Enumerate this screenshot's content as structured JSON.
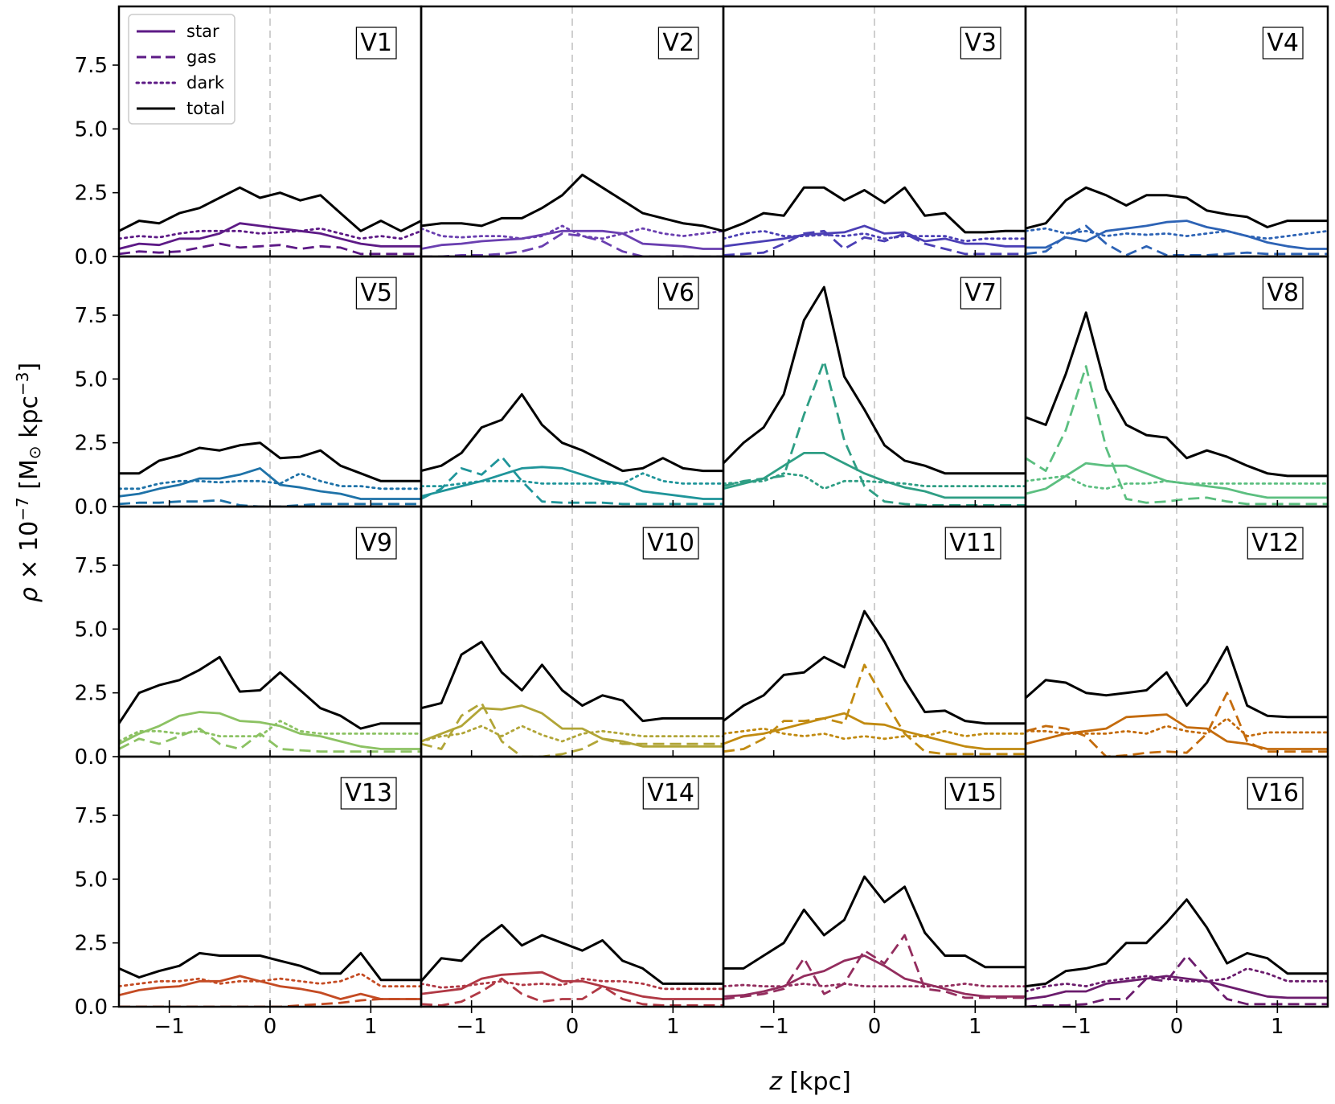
{
  "chart_data": {
    "type": "line",
    "xlabel": "z [kpc]",
    "ylabel_prefix": "ρ × 10",
    "ylabel_exp": "−7",
    "ylabel_units": "[M",
    "ylabel_sun": "⊙",
    "ylabel_units2": " kpc",
    "ylabel_units_exp": "−3",
    "ylabel_close": "]",
    "xlim": [
      -1.5,
      1.5
    ],
    "ylim": [
      0,
      9.8
    ],
    "xticks": [
      -1,
      0,
      1
    ],
    "xtick_labels": [
      "−1",
      "0",
      "1"
    ],
    "yticks": [
      0,
      2.5,
      5,
      7.5
    ],
    "ytick_labels": [
      "0.0",
      "2.5",
      "5.0",
      "7.5"
    ],
    "reference_line_x": 0,
    "legend": {
      "placement": "top-left of panel V1",
      "entries": [
        {
          "label": "star",
          "style": "solid"
        },
        {
          "label": "gas",
          "style": "dashed"
        },
        {
          "label": "dark",
          "style": "dotted"
        },
        {
          "label": "total",
          "style": "solid-black"
        }
      ]
    },
    "x": [
      -1.5,
      -1.3,
      -1.1,
      -0.9,
      -0.7,
      -0.5,
      -0.3,
      -0.1,
      0.1,
      0.3,
      0.5,
      0.7,
      0.9,
      1.1,
      1.3,
      1.5
    ],
    "panels": [
      {
        "name": "V1",
        "color": "#5d1a86",
        "total": [
          1.0,
          1.4,
          1.3,
          1.7,
          1.9,
          2.3,
          2.7,
          2.3,
          2.5,
          2.2,
          2.4,
          1.7,
          1.0,
          1.4,
          1.0,
          1.4
        ],
        "star": [
          0.3,
          0.5,
          0.45,
          0.7,
          0.7,
          0.9,
          1.3,
          1.2,
          1.1,
          1.0,
          0.9,
          0.7,
          0.5,
          0.4,
          0.4,
          0.4
        ],
        "gas": [
          0.1,
          0.2,
          0.15,
          0.2,
          0.35,
          0.5,
          0.35,
          0.4,
          0.45,
          0.3,
          0.4,
          0.35,
          0.1,
          0.1,
          0.1,
          0.1
        ],
        "dark": [
          0.7,
          0.8,
          0.75,
          0.9,
          1.0,
          1.0,
          1.0,
          0.9,
          0.95,
          1.0,
          1.1,
          0.9,
          0.7,
          0.8,
          0.7,
          1.0
        ]
      },
      {
        "name": "V2",
        "color": "#6a3fb0",
        "total": [
          1.2,
          1.3,
          1.3,
          1.2,
          1.5,
          1.5,
          1.9,
          2.4,
          3.2,
          2.7,
          2.2,
          1.7,
          1.5,
          1.3,
          1.2,
          1.0
        ],
        "star": [
          0.3,
          0.45,
          0.5,
          0.6,
          0.65,
          0.7,
          0.85,
          1.0,
          1.0,
          1.0,
          0.9,
          0.5,
          0.45,
          0.4,
          0.3,
          0.3
        ],
        "gas": [
          0.0,
          0.0,
          0.05,
          0.05,
          0.1,
          0.2,
          0.4,
          0.9,
          0.8,
          0.6,
          0.2,
          0.0,
          0.0,
          0.0,
          0.0,
          0.0
        ],
        "dark": [
          1.1,
          0.8,
          0.75,
          0.8,
          0.8,
          0.7,
          0.8,
          1.2,
          0.8,
          0.7,
          0.9,
          1.1,
          0.9,
          0.8,
          0.9,
          1.0
        ]
      },
      {
        "name": "V3",
        "color": "#4b3fb5",
        "total": [
          1.0,
          1.3,
          1.7,
          1.6,
          2.7,
          2.7,
          2.2,
          2.6,
          2.1,
          2.7,
          1.6,
          1.7,
          0.95,
          0.95,
          1.0,
          1.0
        ],
        "star": [
          0.4,
          0.5,
          0.6,
          0.7,
          0.85,
          0.9,
          0.95,
          1.2,
          0.9,
          0.95,
          0.6,
          0.7,
          0.5,
          0.5,
          0.4,
          0.4
        ],
        "gas": [
          0.05,
          0.1,
          0.15,
          0.5,
          0.9,
          1.0,
          0.3,
          0.75,
          0.6,
          0.9,
          0.5,
          0.3,
          0.1,
          0.1,
          0.1,
          0.1
        ],
        "dark": [
          0.7,
          0.9,
          1.0,
          0.8,
          0.8,
          0.85,
          0.8,
          0.9,
          0.7,
          0.8,
          0.8,
          0.8,
          0.6,
          0.7,
          0.7,
          0.7
        ]
      },
      {
        "name": "V4",
        "color": "#2d63b5",
        "total": [
          1.1,
          1.3,
          2.2,
          2.7,
          2.4,
          2.0,
          2.4,
          2.4,
          2.3,
          1.8,
          1.65,
          1.55,
          1.15,
          1.4,
          1.4,
          1.4
        ],
        "star": [
          0.35,
          0.35,
          0.75,
          0.6,
          1.0,
          1.1,
          1.2,
          1.35,
          1.4,
          1.15,
          1.0,
          0.8,
          0.55,
          0.4,
          0.3,
          0.3
        ],
        "gas": [
          0.1,
          0.2,
          0.8,
          1.2,
          0.5,
          0.05,
          0.4,
          0.05,
          0.05,
          0.05,
          0.1,
          0.15,
          0.1,
          0.1,
          0.1,
          0.1
        ],
        "dark": [
          1.0,
          1.1,
          0.9,
          1.0,
          0.8,
          0.9,
          0.85,
          0.9,
          0.8,
          0.9,
          1.0,
          0.8,
          0.7,
          0.8,
          0.9,
          1.0
        ]
      },
      {
        "name": "V5",
        "color": "#1e72a8",
        "total": [
          1.3,
          1.3,
          1.8,
          2.0,
          2.3,
          2.2,
          2.4,
          2.5,
          1.9,
          1.95,
          2.2,
          1.6,
          1.3,
          1.0,
          1.0,
          1.0
        ],
        "star": [
          0.4,
          0.5,
          0.7,
          0.85,
          1.1,
          1.1,
          1.25,
          1.5,
          0.85,
          0.75,
          0.6,
          0.5,
          0.3,
          0.3,
          0.3,
          0.3
        ],
        "gas": [
          0.1,
          0.15,
          0.15,
          0.2,
          0.2,
          0.25,
          0.05,
          0.0,
          0.0,
          0.05,
          0.1,
          0.1,
          0.1,
          0.1,
          0.1,
          0.1
        ],
        "dark": [
          0.7,
          0.7,
          0.9,
          1.0,
          1.0,
          0.95,
          1.0,
          1.0,
          0.9,
          1.3,
          1.0,
          0.8,
          0.8,
          0.7,
          0.7,
          0.7
        ]
      },
      {
        "name": "V6",
        "color": "#1f959a",
        "total": [
          1.4,
          1.6,
          2.1,
          3.1,
          3.4,
          4.4,
          3.2,
          2.5,
          2.2,
          1.8,
          1.4,
          1.5,
          1.9,
          1.5,
          1.4,
          1.4
        ],
        "star": [
          0.4,
          0.6,
          0.8,
          1.0,
          1.25,
          1.5,
          1.55,
          1.5,
          1.25,
          1.0,
          0.9,
          0.6,
          0.5,
          0.4,
          0.3,
          0.3
        ],
        "gas": [
          0.3,
          0.7,
          1.5,
          1.25,
          1.95,
          1.0,
          0.2,
          0.15,
          0.15,
          0.15,
          0.1,
          0.1,
          0.1,
          0.1,
          0.1,
          0.1
        ],
        "dark": [
          0.8,
          0.8,
          0.9,
          1.0,
          1.0,
          1.0,
          0.9,
          0.9,
          0.9,
          0.9,
          0.9,
          1.3,
          1.0,
          0.9,
          0.9,
          0.9
        ]
      },
      {
        "name": "V7",
        "color": "#2e9e84",
        "total": [
          1.7,
          2.5,
          3.1,
          4.4,
          7.3,
          8.6,
          5.1,
          3.8,
          2.4,
          1.8,
          1.6,
          1.3,
          1.3,
          1.3,
          1.3,
          1.3
        ],
        "star": [
          0.7,
          0.9,
          1.1,
          1.6,
          2.1,
          2.1,
          1.7,
          1.3,
          1.0,
          0.75,
          0.6,
          0.35,
          0.35,
          0.35,
          0.35,
          0.35
        ],
        "gas": [
          0.8,
          1.0,
          1.1,
          1.2,
          3.6,
          5.7,
          2.6,
          0.8,
          0.2,
          0.1,
          0.05,
          0.05,
          0.05,
          0.05,
          0.05,
          0.05
        ],
        "dark": [
          0.9,
          0.95,
          1.0,
          1.3,
          1.2,
          0.7,
          1.0,
          1.0,
          0.95,
          0.9,
          0.8,
          0.8,
          0.8,
          0.8,
          0.8,
          0.8
        ]
      },
      {
        "name": "V8",
        "color": "#5cbf80",
        "total": [
          3.5,
          3.2,
          5.2,
          7.6,
          4.6,
          3.2,
          2.8,
          2.7,
          1.9,
          2.2,
          1.95,
          1.6,
          1.3,
          1.2,
          1.2,
          1.2
        ],
        "star": [
          0.5,
          0.7,
          1.2,
          1.7,
          1.6,
          1.6,
          1.3,
          1.0,
          0.9,
          0.8,
          0.7,
          0.5,
          0.35,
          0.35,
          0.35,
          0.35
        ],
        "gas": [
          1.9,
          1.4,
          3.0,
          5.5,
          2.3,
          0.3,
          0.15,
          0.2,
          0.3,
          0.35,
          0.2,
          0.1,
          0.1,
          0.1,
          0.1,
          0.1
        ],
        "dark": [
          1.0,
          1.1,
          1.2,
          0.8,
          0.7,
          0.9,
          0.9,
          1.0,
          0.9,
          0.9,
          0.9,
          0.9,
          0.9,
          0.9,
          0.9,
          0.9
        ]
      },
      {
        "name": "V9",
        "color": "#8cc263",
        "total": [
          1.3,
          2.5,
          2.8,
          3.0,
          3.4,
          3.9,
          2.55,
          2.6,
          3.3,
          2.6,
          1.9,
          1.6,
          1.1,
          1.3,
          1.3,
          1.3
        ],
        "star": [
          0.5,
          0.9,
          1.2,
          1.6,
          1.75,
          1.7,
          1.4,
          1.35,
          1.2,
          0.9,
          0.8,
          0.6,
          0.4,
          0.3,
          0.3,
          0.3
        ],
        "gas": [
          0.3,
          0.7,
          0.5,
          0.8,
          1.1,
          0.5,
          0.3,
          0.9,
          0.3,
          0.25,
          0.2,
          0.2,
          0.2,
          0.2,
          0.2,
          0.2
        ],
        "dark": [
          0.6,
          1.0,
          1.0,
          0.9,
          1.0,
          0.8,
          0.8,
          0.8,
          1.4,
          1.0,
          0.9,
          0.9,
          0.9,
          0.9,
          0.9,
          0.9
        ]
      },
      {
        "name": "V10",
        "color": "#b1a537",
        "total": [
          1.9,
          2.1,
          4.0,
          4.5,
          3.3,
          2.6,
          3.6,
          2.6,
          2.0,
          2.4,
          2.2,
          1.4,
          1.5,
          1.5,
          1.5,
          1.5
        ],
        "star": [
          0.6,
          0.9,
          1.2,
          1.9,
          1.85,
          2.0,
          1.7,
          1.1,
          1.1,
          0.7,
          0.6,
          0.4,
          0.4,
          0.4,
          0.4,
          0.4
        ],
        "gas": [
          0.5,
          0.3,
          1.6,
          2.1,
          0.6,
          0.0,
          0.0,
          0.1,
          0.3,
          0.7,
          0.5,
          0.5,
          0.5,
          0.5,
          0.5,
          0.5
        ],
        "dark": [
          0.6,
          0.8,
          0.9,
          1.2,
          0.8,
          1.2,
          0.85,
          0.6,
          0.9,
          1.0,
          0.9,
          0.8,
          0.8,
          0.8,
          0.8,
          0.8
        ]
      },
      {
        "name": "V11",
        "color": "#c18a10",
        "total": [
          1.4,
          2.0,
          2.4,
          3.2,
          3.3,
          3.9,
          3.5,
          5.7,
          4.5,
          3.0,
          1.75,
          1.8,
          1.4,
          1.3,
          1.3,
          1.3
        ],
        "star": [
          0.5,
          0.8,
          0.9,
          1.1,
          1.3,
          1.5,
          1.7,
          1.3,
          1.25,
          1.0,
          0.8,
          0.6,
          0.4,
          0.3,
          0.3,
          0.3
        ],
        "gas": [
          0.2,
          0.3,
          0.7,
          1.4,
          1.4,
          1.5,
          1.3,
          3.6,
          2.2,
          0.9,
          0.2,
          0.1,
          0.1,
          0.1,
          0.1,
          0.1
        ],
        "dark": [
          0.9,
          1.0,
          1.1,
          0.9,
          0.8,
          0.9,
          0.7,
          0.8,
          0.7,
          0.8,
          0.8,
          1.0,
          0.8,
          0.9,
          0.9,
          0.9
        ]
      },
      {
        "name": "V12",
        "color": "#c46b0c",
        "total": [
          2.3,
          3.0,
          2.9,
          2.5,
          2.4,
          2.5,
          2.6,
          3.3,
          2.0,
          2.9,
          4.3,
          2.0,
          1.6,
          1.55,
          1.55,
          1.55
        ],
        "star": [
          0.5,
          0.7,
          0.9,
          1.0,
          1.1,
          1.55,
          1.6,
          1.65,
          1.15,
          1.1,
          0.6,
          0.5,
          0.3,
          0.3,
          0.3,
          0.3
        ],
        "gas": [
          1.0,
          1.2,
          1.1,
          0.8,
          0.0,
          0.05,
          0.15,
          0.2,
          0.15,
          0.9,
          2.5,
          0.6,
          0.2,
          0.2,
          0.2,
          0.2
        ],
        "dark": [
          1.0,
          1.0,
          0.9,
          0.9,
          0.9,
          1.0,
          0.9,
          1.2,
          1.0,
          0.9,
          1.5,
          0.8,
          0.95,
          0.95,
          0.95,
          0.95
        ]
      },
      {
        "name": "V13",
        "color": "#c44b23",
        "total": [
          1.5,
          1.15,
          1.4,
          1.6,
          2.1,
          2.0,
          2.0,
          2.0,
          1.8,
          1.6,
          1.3,
          1.3,
          2.1,
          1.05,
          1.05,
          1.05
        ],
        "star": [
          0.45,
          0.65,
          0.75,
          0.8,
          1.0,
          1.0,
          1.2,
          1.0,
          0.8,
          0.7,
          0.55,
          0.3,
          0.5,
          0.3,
          0.3,
          0.3
        ],
        "gas": [
          0.0,
          0.0,
          0.0,
          0.0,
          0.0,
          0.0,
          0.0,
          0.0,
          0.0,
          0.05,
          0.1,
          0.15,
          0.25,
          0.3,
          0.3,
          0.3
        ],
        "dark": [
          0.8,
          0.9,
          1.0,
          1.0,
          1.1,
          0.9,
          1.0,
          1.0,
          1.1,
          1.0,
          0.9,
          1.0,
          1.3,
          0.8,
          0.8,
          0.8
        ]
      },
      {
        "name": "V14",
        "color": "#b03844",
        "total": [
          1.0,
          1.9,
          1.8,
          2.6,
          3.2,
          2.4,
          2.8,
          2.5,
          2.2,
          2.6,
          1.8,
          1.5,
          0.9,
          0.9,
          0.9,
          0.9
        ],
        "star": [
          0.5,
          0.6,
          0.7,
          1.1,
          1.25,
          1.3,
          1.35,
          1.0,
          1.0,
          0.8,
          0.6,
          0.4,
          0.3,
          0.3,
          0.3,
          0.3
        ],
        "gas": [
          0.1,
          0.05,
          0.2,
          0.6,
          1.1,
          0.5,
          0.2,
          0.3,
          0.3,
          0.8,
          0.3,
          0.1,
          0.05,
          0.05,
          0.05,
          0.05
        ],
        "dark": [
          0.9,
          0.75,
          0.8,
          0.9,
          1.0,
          0.85,
          0.9,
          0.85,
          1.1,
          1.0,
          1.0,
          0.9,
          0.7,
          0.7,
          0.7,
          0.7
        ]
      },
      {
        "name": "V15",
        "color": "#932d5e",
        "total": [
          1.5,
          1.5,
          2.0,
          2.5,
          3.8,
          2.8,
          3.4,
          5.1,
          4.1,
          4.7,
          2.9,
          2.0,
          2.0,
          1.55,
          1.55,
          1.55
        ],
        "star": [
          0.4,
          0.45,
          0.6,
          0.8,
          1.2,
          1.4,
          1.8,
          2.0,
          1.6,
          1.1,
          0.9,
          0.7,
          0.5,
          0.4,
          0.4,
          0.4
        ],
        "gas": [
          0.3,
          0.4,
          0.5,
          0.7,
          1.9,
          0.5,
          0.9,
          2.2,
          1.7,
          2.8,
          0.7,
          0.6,
          0.35,
          0.35,
          0.35,
          0.35
        ],
        "dark": [
          0.8,
          0.85,
          0.8,
          0.8,
          0.9,
          0.8,
          0.9,
          0.8,
          0.8,
          0.8,
          0.8,
          0.8,
          0.9,
          0.8,
          0.8,
          0.8
        ]
      },
      {
        "name": "V16",
        "color": "#6b1c6d",
        "total": [
          0.8,
          0.9,
          1.4,
          1.5,
          1.7,
          2.5,
          2.5,
          3.3,
          4.2,
          3.1,
          1.7,
          2.1,
          1.9,
          1.3,
          1.3,
          1.3
        ],
        "star": [
          0.3,
          0.4,
          0.6,
          0.6,
          0.9,
          1.0,
          1.1,
          1.2,
          1.1,
          1.0,
          0.8,
          0.6,
          0.4,
          0.35,
          0.35,
          0.35
        ],
        "gas": [
          0.0,
          0.05,
          0.05,
          0.1,
          0.3,
          0.3,
          1.1,
          1.0,
          2.0,
          1.1,
          0.3,
          0.1,
          0.1,
          0.1,
          0.1,
          0.1
        ],
        "dark": [
          0.6,
          0.8,
          0.9,
          0.8,
          1.0,
          1.1,
          1.2,
          1.1,
          1.0,
          1.0,
          1.1,
          1.5,
          1.3,
          1.0,
          1.0,
          1.0
        ]
      }
    ]
  }
}
